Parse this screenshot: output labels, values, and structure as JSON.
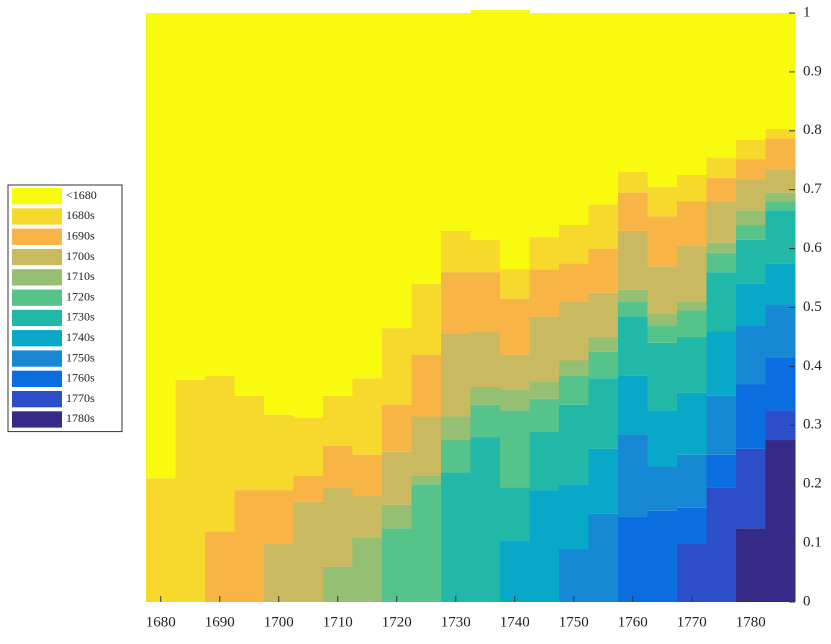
{
  "chart_data": {
    "type": "stacked_bar",
    "x": [
      1680,
      1685,
      1690,
      1695,
      1700,
      1705,
      1710,
      1715,
      1720,
      1725,
      1730,
      1735,
      1740,
      1745,
      1750,
      1755,
      1760,
      1765,
      1770,
      1775,
      1780,
      1785
    ],
    "xlim": [
      1677.5,
      1787.5
    ],
    "xticks": [
      1680,
      1690,
      1700,
      1710,
      1720,
      1730,
      1740,
      1750,
      1760,
      1770,
      1780
    ],
    "ylim": [
      0,
      1
    ],
    "yticks": [
      0,
      0.1,
      0.2,
      0.3,
      0.4,
      0.5,
      0.6,
      0.7,
      0.8,
      0.9,
      1
    ],
    "series": [
      {
        "name": "<1680",
        "color": "#f9fb0e",
        "values": [
          0.79,
          0.623,
          0.616,
          0.65,
          0.682,
          0.687,
          0.65,
          0.62,
          0.535,
          0.46,
          0.37,
          0.39,
          0.44,
          0.38,
          0.36,
          0.325,
          0.27,
          0.295,
          0.275,
          0.245,
          0.215,
          0.197
        ]
      },
      {
        "name": "1680s",
        "color": "#f6d92c",
        "values": [
          0.21,
          0.377,
          0.264,
          0.16,
          0.128,
          0.098,
          0.085,
          0.13,
          0.13,
          0.12,
          0.07,
          0.055,
          0.05,
          0.055,
          0.065,
          0.075,
          0.035,
          0.05,
          0.045,
          0.035,
          0.033,
          0.016
        ]
      },
      {
        "name": "1690s",
        "color": "#f8b545",
        "values": [
          0,
          0,
          0.12,
          0.19,
          0.09,
          0.045,
          0.07,
          0.07,
          0.08,
          0.105,
          0.105,
          0.1,
          0.095,
          0.08,
          0.065,
          0.075,
          0.065,
          0.085,
          0.075,
          0.04,
          0.034,
          0.052
        ]
      },
      {
        "name": "1700s",
        "color": "#c9b960",
        "values": [
          0,
          0,
          0,
          0,
          0.1,
          0.17,
          0.135,
          0.07,
          0.09,
          0.1,
          0.14,
          0.095,
          0.06,
          0.11,
          0.1,
          0.075,
          0.1,
          0.08,
          0.095,
          0.07,
          0.053,
          0.04
        ]
      },
      {
        "name": "1710s",
        "color": "#95bf73",
        "values": [
          0,
          0,
          0,
          0,
          0,
          0,
          0.06,
          0.11,
          0.04,
          0.015,
          0.04,
          0.03,
          0.035,
          0.03,
          0.025,
          0.025,
          0.02,
          0.02,
          0.015,
          0.017,
          0.025,
          0.015
        ]
      },
      {
        "name": "1720s",
        "color": "#55c38a",
        "values": [
          0,
          0,
          0,
          0,
          0,
          0,
          0,
          0,
          0.125,
          0.2,
          0.055,
          0.055,
          0.13,
          0.055,
          0.05,
          0.045,
          0.025,
          0.03,
          0.045,
          0.033,
          0.025,
          0.015
        ]
      },
      {
        "name": "1730s",
        "color": "#22b8a8",
        "values": [
          0,
          0,
          0,
          0,
          0,
          0,
          0,
          0,
          0,
          0,
          0.22,
          0.28,
          0.09,
          0.1,
          0.135,
          0.12,
          0.1,
          0.115,
          0.095,
          0.1,
          0.075,
          0.09
        ]
      },
      {
        "name": "1740s",
        "color": "#08a8c9",
        "values": [
          0,
          0,
          0,
          0,
          0,
          0,
          0,
          0,
          0,
          0,
          0,
          0,
          0.105,
          0.19,
          0.11,
          0.11,
          0.1,
          0.095,
          0.105,
          0.11,
          0.07,
          0.07
        ]
      },
      {
        "name": "1750s",
        "color": "#1688d4",
        "values": [
          0,
          0,
          0,
          0,
          0,
          0,
          0,
          0,
          0,
          0,
          0,
          0,
          0,
          0,
          0.09,
          0.15,
          0.14,
          0.075,
          0.09,
          0.1,
          0.1,
          0.09
        ]
      },
      {
        "name": "1760s",
        "color": "#0a6ee0",
        "values": [
          0,
          0,
          0,
          0,
          0,
          0,
          0,
          0,
          0,
          0,
          0,
          0,
          0,
          0,
          0,
          0,
          0.145,
          0.155,
          0.06,
          0.055,
          0.11,
          0.09
        ]
      },
      {
        "name": "1770s",
        "color": "#2d4ec9",
        "values": [
          0,
          0,
          0,
          0,
          0,
          0,
          0,
          0,
          0,
          0,
          0,
          0,
          0,
          0,
          0,
          0,
          0,
          0,
          0.1,
          0.195,
          0.135,
          0.05
        ]
      },
      {
        "name": "1780s",
        "color": "#352a87",
        "values": [
          0,
          0,
          0,
          0,
          0,
          0,
          0,
          0,
          0,
          0,
          0,
          0,
          0,
          0,
          0,
          0,
          0,
          0,
          0,
          0,
          0.125,
          0.275
        ]
      }
    ]
  }
}
